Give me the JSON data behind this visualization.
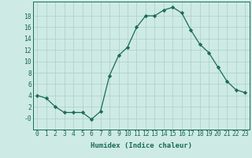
{
  "x": [
    0,
    1,
    2,
    3,
    4,
    5,
    6,
    7,
    8,
    9,
    10,
    11,
    12,
    13,
    14,
    15,
    16,
    17,
    18,
    19,
    20,
    21,
    22,
    23
  ],
  "y": [
    4,
    3.5,
    2,
    1,
    1,
    1,
    -0.2,
    1.2,
    7.5,
    11,
    12.5,
    16,
    18,
    18,
    19,
    19.5,
    18.5,
    15.5,
    13,
    11.5,
    9,
    6.5,
    5,
    4.5
  ],
  "line_color": "#1a6b5a",
  "marker": "D",
  "marker_size": 2.2,
  "bg_color": "#ceeae4",
  "grid_color": "#aacfc8",
  "xlabel": "Humidex (Indice chaleur)",
  "xlim": [
    -0.5,
    23.5
  ],
  "ylim": [
    -2,
    20.5
  ],
  "yticks": [
    0,
    2,
    4,
    6,
    8,
    10,
    12,
    14,
    16,
    18
  ],
  "ytick_labels": [
    "-0",
    "2",
    "4",
    "6",
    "8",
    "10",
    "12",
    "14",
    "16",
    "18"
  ],
  "xticks": [
    0,
    1,
    2,
    3,
    4,
    5,
    6,
    7,
    8,
    9,
    10,
    11,
    12,
    13,
    14,
    15,
    16,
    17,
    18,
    19,
    20,
    21,
    22,
    23
  ],
  "axis_fontsize": 6.5,
  "tick_fontsize": 5.8
}
